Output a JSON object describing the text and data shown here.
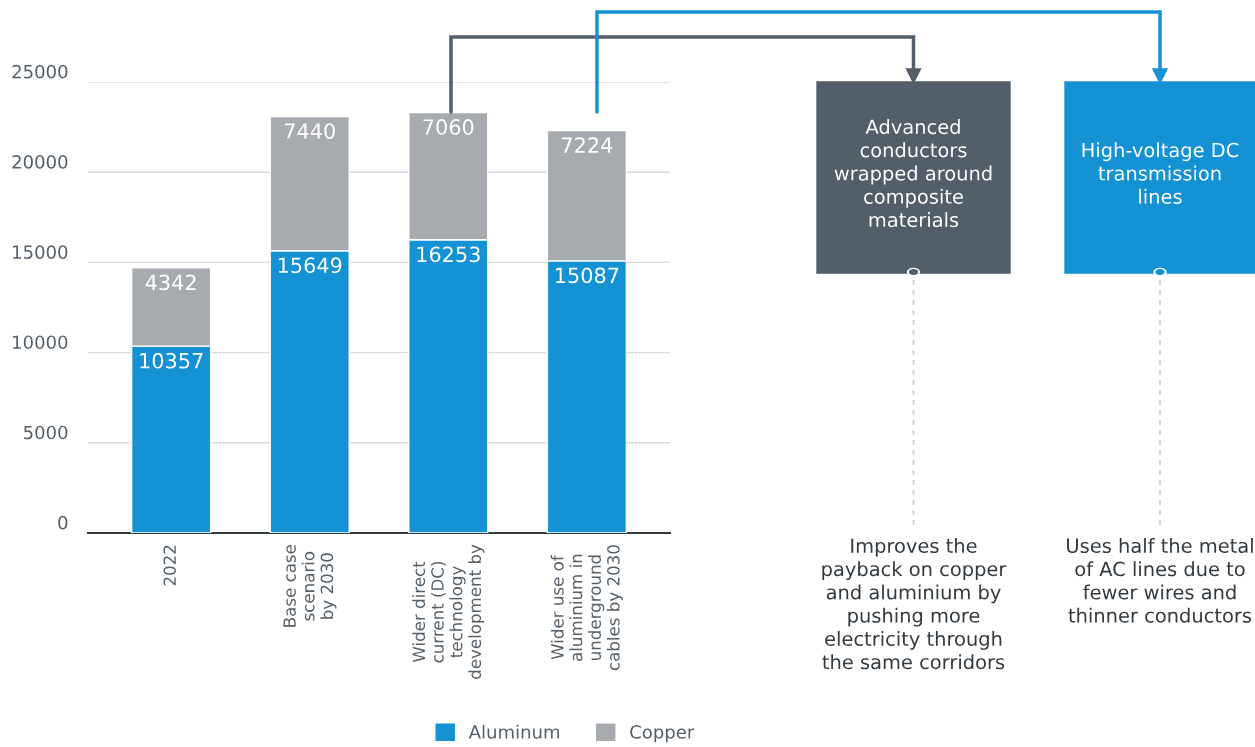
{
  "chart_data": {
    "type": "bar",
    "stacked": true,
    "categories": [
      "2022",
      "Base case\nscenario\nby 2030",
      "Wider direct\ncurrent (DC)\ntechnology\ndevelopment by",
      "Wider use of\naluminium in\nunderground\ncables by 2030"
    ],
    "series": [
      {
        "name": "Aluminum",
        "color": "#1592d3",
        "values": [
          10357,
          15649,
          16253,
          15087
        ]
      },
      {
        "name": "Copper",
        "color": "#a7abb0",
        "values": [
          4342,
          7440,
          7060,
          7224
        ]
      }
    ],
    "data_labels": true,
    "ylim": [
      0,
      25000
    ],
    "yticks": [
      0,
      5000,
      10000,
      15000,
      20000,
      25000
    ],
    "grid": "y",
    "legend": "bottom",
    "annotations": [
      "Advanced\nconductors\nwrapped around\ncomposite\nmaterials",
      "High-voltage DC\ntransmission\nlines",
      "Improves the\npayback on copper\nand aluminium by\npushing more\nelectricity through\nthe same corridors",
      "Uses half the metal\nof AC lines due to\nfewer wires and\nthinner conductors"
    ]
  }
}
